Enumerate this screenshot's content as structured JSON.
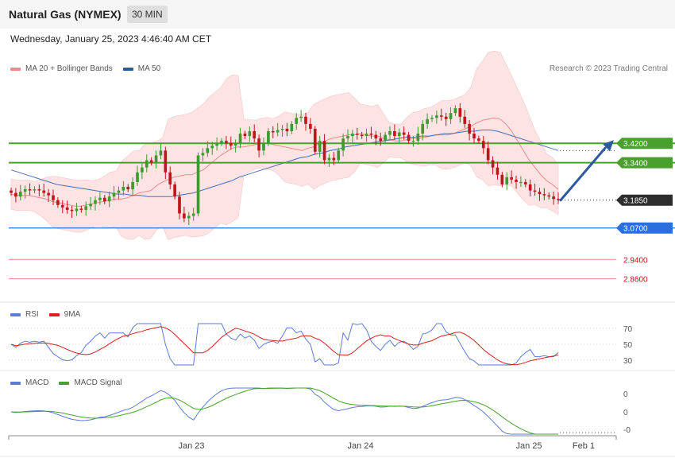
{
  "header": {
    "title": "Natural Gas (NYMEX)",
    "timeframe": "30 MIN"
  },
  "timestamp": "Wednesday, January 25, 2023 4:46:40 AM CET",
  "credit": "Research © 2023 Trading Central",
  "legend_main": [
    {
      "label": "MA 20 + Bollinger Bands",
      "color": "#f08a8a"
    },
    {
      "label": "MA 50",
      "color": "#2f5a9a"
    }
  ],
  "legend_rsi": [
    {
      "label": "RSI",
      "color": "#5b7bd5"
    },
    {
      "label": "9MA",
      "color": "#d62020"
    }
  ],
  "legend_macd": [
    {
      "label": "MACD",
      "color": "#5b7bd5"
    },
    {
      "label": "MACD Signal",
      "color": "#4aa02c"
    }
  ],
  "colors": {
    "bullish": "#3d9a2f",
    "bearish": "#c0151b",
    "band_fill": "#fde3e3",
    "ma20": "#f08a8a",
    "ma50": "#4a6fb5",
    "resistance": "#4aa02c",
    "support_blue": "#2a6fe0",
    "support_red": "#e88a8a",
    "current": "#2d2d2d",
    "forecast_arrow": "#2d5a9e"
  },
  "chart_data": {
    "type": "candlestick",
    "x_tick_labels": [
      "Jan 23",
      "Jan 24",
      "Jan 25",
      "Feb 1"
    ],
    "price_levels": [
      {
        "value": 3.42,
        "label": "3.4200",
        "kind": "resistance"
      },
      {
        "value": 3.34,
        "label": "3.3400",
        "kind": "resistance"
      },
      {
        "value": 3.185,
        "label": "3.1850",
        "kind": "current"
      },
      {
        "value": 3.07,
        "label": "3.0700",
        "kind": "support"
      },
      {
        "value": 2.94,
        "label": "2.9400",
        "kind": "support-minor"
      },
      {
        "value": 2.86,
        "label": "2.8600",
        "kind": "support-minor"
      }
    ],
    "forecast_arrow": {
      "from": 3.185,
      "to": 3.42
    },
    "close": [
      3.215,
      3.2,
      3.22,
      3.23,
      3.225,
      3.23,
      3.225,
      3.215,
      3.205,
      3.185,
      3.165,
      3.155,
      3.145,
      3.14,
      3.15,
      3.145,
      3.16,
      3.17,
      3.185,
      3.195,
      3.18,
      3.2,
      3.215,
      3.225,
      3.24,
      3.23,
      3.26,
      3.3,
      3.32,
      3.35,
      3.34,
      3.37,
      3.39,
      3.3,
      3.25,
      3.2,
      3.13,
      3.11,
      3.12,
      3.13,
      3.37,
      3.38,
      3.4,
      3.41,
      3.42,
      3.43,
      3.42,
      3.41,
      3.42,
      3.46,
      3.45,
      3.47,
      3.44,
      3.39,
      3.42,
      3.47,
      3.465,
      3.475,
      3.48,
      3.47,
      3.5,
      3.525,
      3.53,
      3.5,
      3.48,
      3.385,
      3.43,
      3.35,
      3.36,
      3.35,
      3.39,
      3.44,
      3.45,
      3.46,
      3.455,
      3.45,
      3.46,
      3.455,
      3.44,
      3.43,
      3.455,
      3.47,
      3.45,
      3.465,
      3.455,
      3.43,
      3.43,
      3.46,
      3.5,
      3.52,
      3.525,
      3.535,
      3.53,
      3.52,
      3.545,
      3.565,
      3.53,
      3.5,
      3.46,
      3.44,
      3.43,
      3.4,
      3.35,
      3.32,
      3.29,
      3.25,
      3.28,
      3.27,
      3.26,
      3.26,
      3.25,
      3.225,
      3.22,
      3.21,
      3.205,
      3.2,
      3.19,
      3.185
    ],
    "ma20": [
      3.21,
      3.205,
      3.205,
      3.205,
      3.2,
      3.195,
      3.19,
      3.18,
      3.175,
      3.17,
      3.165,
      3.16,
      3.16,
      3.165,
      3.17,
      3.175,
      3.18,
      3.185,
      3.19,
      3.19,
      3.195,
      3.205,
      3.215,
      3.22,
      3.225,
      3.245,
      3.26,
      3.27,
      3.28,
      3.285,
      3.29,
      3.29,
      3.3,
      3.31,
      3.33,
      3.35,
      3.37,
      3.385,
      3.4,
      3.405,
      3.405,
      3.41,
      3.415,
      3.42,
      3.42,
      3.415,
      3.41,
      3.405,
      3.4,
      3.395,
      3.39,
      3.4,
      3.405,
      3.42,
      3.43,
      3.44,
      3.445,
      3.45,
      3.455,
      3.455,
      3.46,
      3.455,
      3.45,
      3.45,
      3.44,
      3.435,
      3.43,
      3.43,
      3.435,
      3.44,
      3.44,
      3.445,
      3.45,
      3.455,
      3.455,
      3.455,
      3.46,
      3.47,
      3.48,
      3.49,
      3.505,
      3.515,
      3.52,
      3.525,
      3.52,
      3.5,
      3.47,
      3.43,
      3.39,
      3.35,
      3.32,
      3.29,
      3.265,
      3.25,
      3.23
    ],
    "ma50": [
      3.31,
      3.3,
      3.29,
      3.28,
      3.27,
      3.26,
      3.25,
      3.245,
      3.24,
      3.235,
      3.23,
      3.225,
      3.22,
      3.215,
      3.21,
      3.21,
      3.205,
      3.205,
      3.2,
      3.2,
      3.2,
      3.2,
      3.205,
      3.21,
      3.215,
      3.225,
      3.235,
      3.245,
      3.255,
      3.265,
      3.28,
      3.29,
      3.3,
      3.31,
      3.32,
      3.33,
      3.34,
      3.35,
      3.36,
      3.365,
      3.375,
      3.38,
      3.39,
      3.395,
      3.405,
      3.41,
      3.415,
      3.42,
      3.425,
      3.43,
      3.435,
      3.44,
      3.445,
      3.445,
      3.45,
      3.45,
      3.455,
      3.46,
      3.46,
      3.465,
      3.47,
      3.47,
      3.475,
      3.475,
      3.47,
      3.46,
      3.45,
      3.44,
      3.43,
      3.42,
      3.41,
      3.4,
      3.39
    ],
    "rsi": {
      "ticks": [
        70,
        50,
        30
      ],
      "range": [
        20,
        80
      ]
    },
    "macd": {
      "tick_labels": [
        "0",
        "0",
        "-0"
      ]
    }
  }
}
